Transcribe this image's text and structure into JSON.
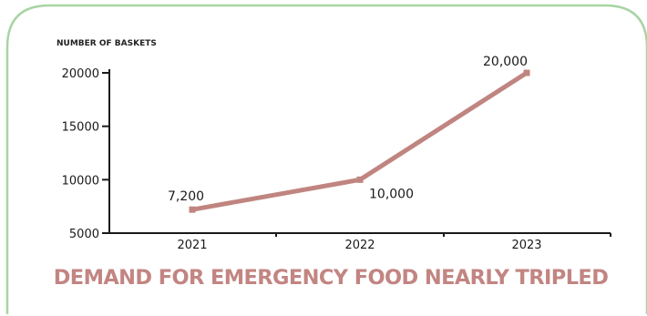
{
  "chart_data": {
    "type": "line",
    "title": "DEMAND FOR EMERGENCY FOOD NEARLY TRIPLED",
    "ylabel": "NUMBER OF BASKETS",
    "xlabel": "",
    "categories": [
      "2021",
      "2022",
      "2023"
    ],
    "series": [
      {
        "values": [
          7200,
          10000,
          20000
        ],
        "data_labels": [
          "7,200",
          "10,000",
          "20,000"
        ]
      }
    ],
    "ylim": [
      5000,
      20000
    ],
    "yticks": [
      5000,
      10000,
      15000,
      20000
    ],
    "ytick_labels": [
      "5000",
      "10000",
      "15000",
      "20000"
    ],
    "grid": false,
    "legend": "none",
    "colors": {
      "line": "#c08580",
      "title": "#c28582",
      "frame": "#a8d4a4",
      "axis": "#1a1a1a"
    }
  }
}
